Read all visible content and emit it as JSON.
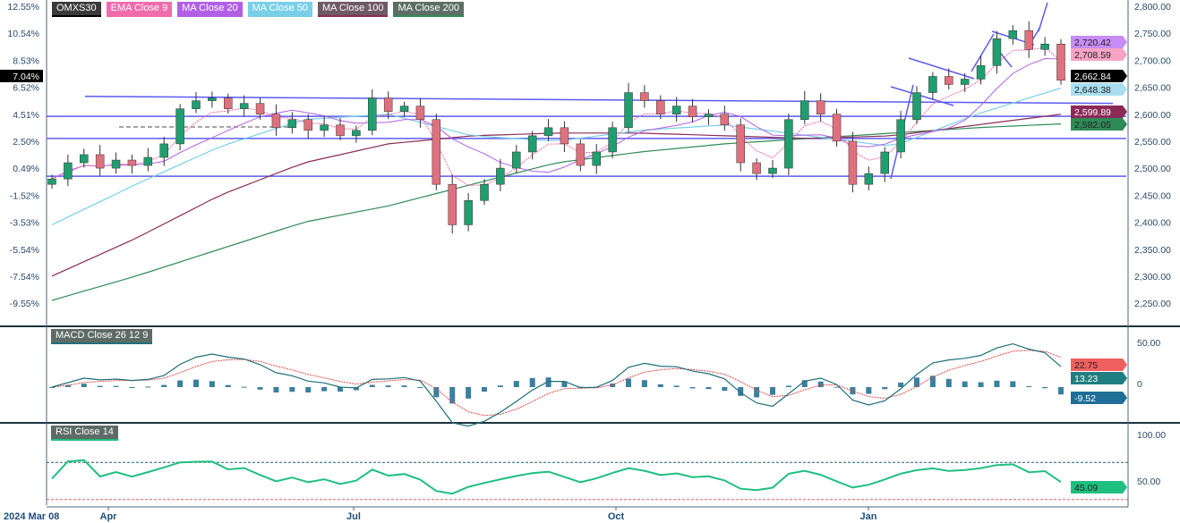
{
  "legend": [
    {
      "label": "OMXS30",
      "color": "#3a3a3a",
      "under": "#000000"
    },
    {
      "label": "EMA Close 9",
      "color": "#f06bab",
      "under": "#f06bab"
    },
    {
      "label": "MA Close 20",
      "color": "#b160e6",
      "under": "#b160e6"
    },
    {
      "label": "MA Close 50",
      "color": "#79cfe8",
      "under": "#79cfe8"
    },
    {
      "label": "MA Close 100",
      "color": "#6e5a64",
      "under": "#8b2a57"
    },
    {
      "label": "MA Close 200",
      "color": "#5e6e66",
      "under": "#2e8b57"
    }
  ],
  "macd_label": "MACD Close 26 12 9",
  "rsi_label": "RSI Close 14",
  "chart_data": {
    "type": "candlestick",
    "title": "OMXS30",
    "price_axis": {
      "ylim": [
        2250,
        2800
      ],
      "ticks": [
        "2,800.00",
        "2,750.00",
        "2,700.00",
        "2,650.00",
        "2,600.00",
        "2,550.00",
        "2,500.00",
        "2,450.00",
        "2,400.00",
        "2,350.00",
        "2,300.00",
        "2,250.00"
      ]
    },
    "pct_axis": {
      "ticks": [
        "12.55%",
        "10.54%",
        "8.53%",
        "6.52%",
        "4.51%",
        "2.50%",
        "0.49%",
        "-1.52%",
        "-3.53%",
        "-5.54%",
        "-7.54%",
        "-9.55%"
      ],
      "current": "7.04%"
    },
    "x_labels": [
      "2024 Mar 08",
      "Apr",
      "Jul",
      "Oct",
      "Jan"
    ],
    "closes": [
      2480,
      2510,
      2525,
      2500,
      2515,
      2505,
      2520,
      2545,
      2610,
      2625,
      2630,
      2610,
      2620,
      2600,
      2575,
      2590,
      2570,
      2580,
      2560,
      2570,
      2630,
      2605,
      2615,
      2590,
      2470,
      2395,
      2440,
      2470,
      2500,
      2530,
      2560,
      2575,
      2545,
      2505,
      2530,
      2575,
      2640,
      2625,
      2600,
      2615,
      2595,
      2600,
      2580,
      2510,
      2490,
      2500,
      2590,
      2625,
      2600,
      2550,
      2470,
      2490,
      2530,
      2590,
      2640,
      2670,
      2655,
      2665,
      2690,
      2740,
      2755,
      2720,
      2730,
      2662.84
    ],
    "ma50": [
      2395,
      2470,
      2540,
      2590,
      2600,
      2560,
      2550,
      2570,
      2580,
      2560,
      2540,
      2600,
      2648.38
    ],
    "ma100": [
      2300,
      2370,
      2450,
      2510,
      2545,
      2560,
      2565,
      2565,
      2560,
      2555,
      2560,
      2580,
      2599.89
    ],
    "ma200": [
      2255,
      2300,
      2350,
      2400,
      2430,
      2470,
      2510,
      2530,
      2545,
      2555,
      2565,
      2575,
      2582.05
    ],
    "levels": [
      2596,
      2555,
      2485
    ],
    "trend_line": [
      2633,
      2620
    ],
    "last_values": {
      "ma20": "2,720.42",
      "ema9": "2,708.59",
      "close": "2,662.84",
      "ma50": "2,648.38",
      "ma100": "2,599.89",
      "ma200": "2,582.05"
    },
    "macd": {
      "ticks": [
        "50.00",
        "0"
      ],
      "ylim": [
        -50,
        50
      ],
      "last": {
        "signal": "22.75",
        "macd": "13.23",
        "hist": "-9.52"
      }
    },
    "rsi": {
      "ticks": [
        "100.00",
        "50.00"
      ],
      "ylim": [
        0,
        100
      ],
      "overbought": 70,
      "oversold": 30,
      "last": "45.09"
    }
  },
  "colors": {
    "up": "#26a69a",
    "down": "#e06c7c",
    "candle_up": "#1f9e6f",
    "candle_down": "#e0707d",
    "hline": "#5b5bf0",
    "ema9": "#f06bab",
    "ma20": "#b160e6",
    "ma50": "#79cfe8",
    "ma100": "#8b2a57",
    "ma200": "#2e8b57",
    "macd": "#1f6f78",
    "signal": "#e04a4a",
    "hist": "#3b7fa0",
    "rsi": "#1fbf80"
  }
}
